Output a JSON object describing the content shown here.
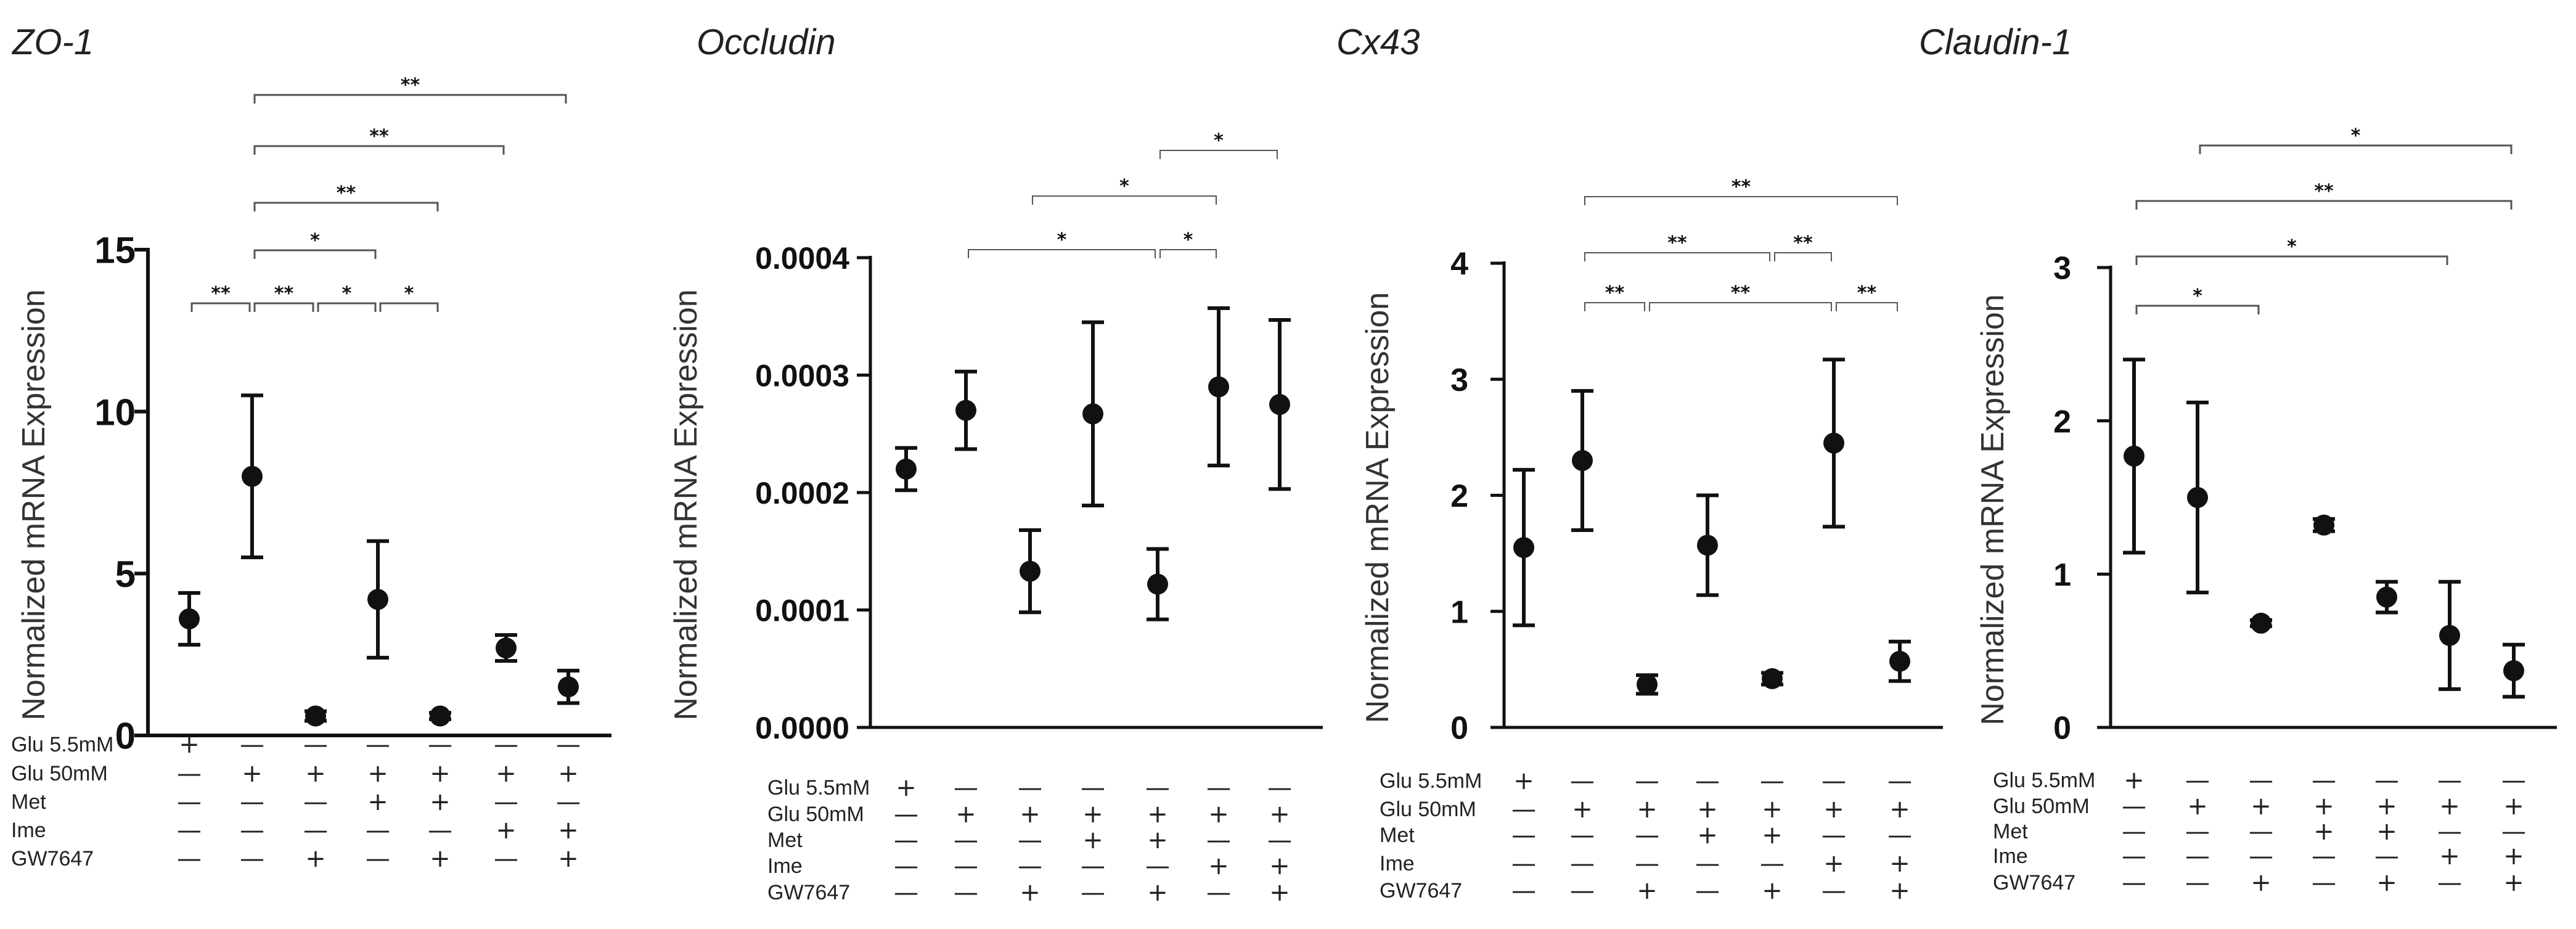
{
  "figure": {
    "row_labels": [
      "Glu 5.5mM",
      "Glu 50mM",
      "Met",
      "Ime",
      "GW7647"
    ],
    "groups": [
      [
        "+",
        "-",
        "-",
        "-",
        "-"
      ],
      [
        "-",
        "+",
        "-",
        "-",
        "-"
      ],
      [
        "-",
        "+",
        "-",
        "-",
        "+"
      ],
      [
        "-",
        "+",
        "+",
        "-",
        "-"
      ],
      [
        "-",
        "+",
        "+",
        "-",
        "+"
      ],
      [
        "-",
        "+",
        "-",
        "+",
        "-"
      ],
      [
        "-",
        "+",
        "-",
        "+",
        "+"
      ]
    ]
  },
  "chart_data": [
    {
      "type": "scatter",
      "title": "ZO-1",
      "ylabel": "Normalized  mRNA Expression",
      "ylim": [
        0,
        15
      ],
      "yticks": [
        "0",
        "5",
        "10",
        "15"
      ],
      "means": [
        3.6,
        8.0,
        0.6,
        4.2,
        0.6,
        2.7,
        1.5
      ],
      "errors": [
        0.8,
        2.5,
        0.15,
        1.8,
        0.1,
        0.4,
        0.5
      ],
      "significance": [
        {
          "from": 1,
          "to": 2,
          "label": "**"
        },
        {
          "from": 2,
          "to": 3,
          "label": "**"
        },
        {
          "from": 3,
          "to": 4,
          "label": "*"
        },
        {
          "from": 4,
          "to": 5,
          "label": "*"
        },
        {
          "from": 2,
          "to": 4,
          "label": "*"
        },
        {
          "from": 2,
          "to": 5,
          "label": "**"
        },
        {
          "from": 2,
          "to": 6,
          "label": "**"
        },
        {
          "from": 2,
          "to": 7,
          "label": "**"
        }
      ]
    },
    {
      "type": "scatter",
      "title": "Occludin",
      "ylabel": "Normalized mRNA Expression",
      "ylim": [
        0,
        0.0004
      ],
      "yticks": [
        "0.0000",
        "0.0001",
        "0.0002",
        "0.0003",
        "0.0004"
      ],
      "means": [
        0.00022,
        0.00027,
        0.000133,
        0.000267,
        0.000122,
        0.00029,
        0.000275
      ],
      "errors": [
        1.8e-05,
        3.3e-05,
        3.5e-05,
        7.8e-05,
        3e-05,
        6.7e-05,
        7.2e-05
      ],
      "significance": [
        {
          "from": 2,
          "to": 5,
          "label": "*"
        },
        {
          "from": 5,
          "to": 6,
          "label": "*"
        },
        {
          "from": 3,
          "to": 6,
          "label": "*"
        },
        {
          "from": 5,
          "to": 7,
          "label": "*"
        }
      ]
    },
    {
      "type": "scatter",
      "title": "Cx43",
      "ylabel": "Normalized mRNA Expression",
      "ylim": [
        0,
        4
      ],
      "yticks": [
        "0",
        "1",
        "2",
        "3",
        "4"
      ],
      "means": [
        1.55,
        2.3,
        0.37,
        1.57,
        0.42,
        2.45,
        0.57
      ],
      "errors": [
        0.67,
        0.6,
        0.08,
        0.43,
        0.05,
        0.72,
        0.17
      ],
      "significance": [
        {
          "from": 2,
          "to": 3,
          "label": "**"
        },
        {
          "from": 3,
          "to": 6,
          "label": "**"
        },
        {
          "from": 6,
          "to": 7,
          "label": "**"
        },
        {
          "from": 2,
          "to": 5,
          "label": "**"
        },
        {
          "from": 5,
          "to": 6,
          "label": "**"
        },
        {
          "from": 2,
          "to": 7,
          "label": "**"
        }
      ]
    },
    {
      "type": "scatter",
      "title": "Claudin-1",
      "ylabel": "Normalized mRNA Expression",
      "ylim": [
        0,
        3
      ],
      "yticks": [
        "0",
        "1",
        "2",
        "3"
      ],
      "means": [
        1.77,
        1.5,
        0.68,
        1.32,
        0.85,
        0.6,
        0.37
      ],
      "errors": [
        0.63,
        0.62,
        0.02,
        0.04,
        0.1,
        0.35,
        0.17
      ],
      "significance": [
        {
          "from": 1,
          "to": 3,
          "label": "*"
        },
        {
          "from": 1,
          "to": 6,
          "label": "*"
        },
        {
          "from": 1,
          "to": 7,
          "label": "**"
        },
        {
          "from": 2,
          "to": 7,
          "label": "*"
        }
      ]
    }
  ]
}
